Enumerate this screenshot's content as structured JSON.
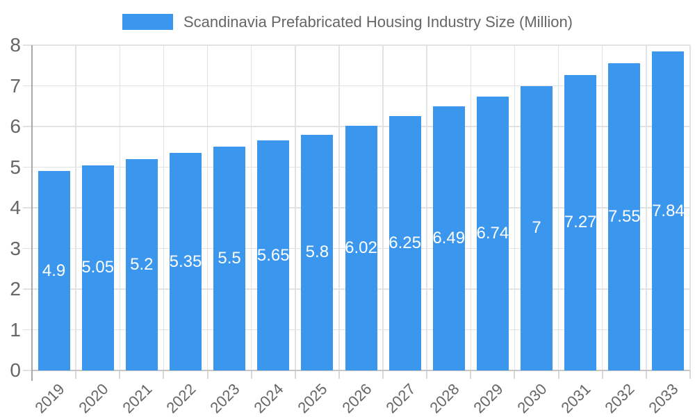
{
  "legend": {
    "label": "Scandinavia Prefabricated Housing Industry Size (Million)"
  },
  "chart_data": {
    "type": "bar",
    "title": "Scandinavia Prefabricated Housing Industry Size (Million)",
    "categories": [
      "2019",
      "2020",
      "2021",
      "2022",
      "2023",
      "2024",
      "2025",
      "2026",
      "2027",
      "2028",
      "2029",
      "2030",
      "2031",
      "2032",
      "2033"
    ],
    "values": [
      4.9,
      5.05,
      5.2,
      5.35,
      5.5,
      5.65,
      5.8,
      6.02,
      6.25,
      6.49,
      6.74,
      7,
      7.27,
      7.55,
      7.84
    ],
    "value_labels": [
      "4.9",
      "5.05",
      "5.2",
      "5.35",
      "5.5",
      "5.65",
      "5.8",
      "6.02",
      "6.25",
      "6.49",
      "6.74",
      "7",
      "7.27",
      "7.55",
      "7.84"
    ],
    "xlabel": "",
    "ylabel": "",
    "ylim": [
      0,
      8
    ],
    "yticks": [
      "0",
      "1",
      "2",
      "3",
      "4",
      "5",
      "6",
      "7",
      "8"
    ],
    "grid": true,
    "legend_position": "top",
    "colors": {
      "bar": "#3B97ED",
      "value_label": "#FFFFFF",
      "axis_text": "#666666",
      "gridline": "#E2E2E2",
      "y_axis_line": "#A8A8A8",
      "x_axis_line": "#C6C6C6",
      "x_tick": "#D8D8D8",
      "background": "#FFFFFF"
    }
  }
}
